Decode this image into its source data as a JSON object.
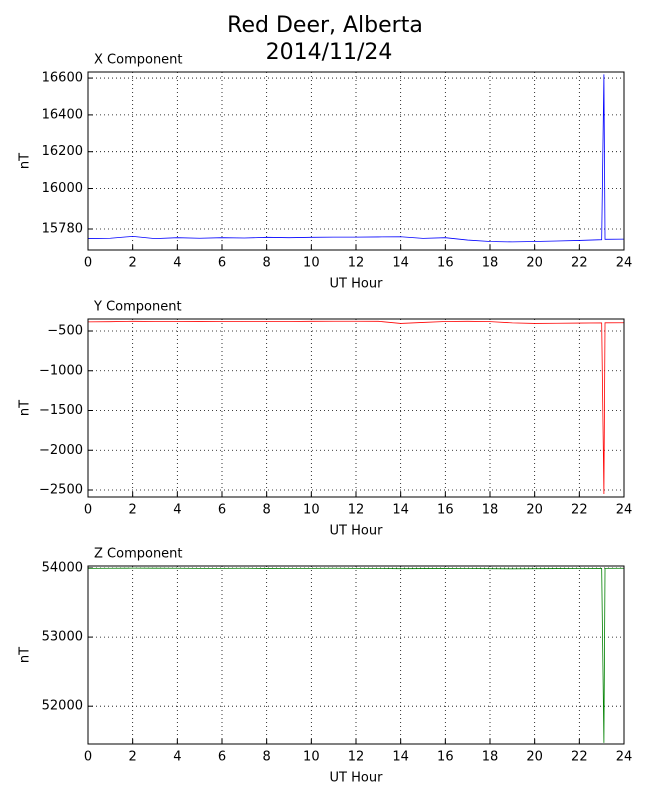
{
  "title": "Red Deer, Alberta",
  "subtitle": "2014/11/24",
  "chart_data": [
    {
      "type": "line",
      "title": "X Component",
      "x_label": "UT Hour",
      "y_label": "nT",
      "xlim": [
        0,
        24
      ],
      "xticks": [
        0,
        2,
        4,
        6,
        8,
        10,
        12,
        14,
        16,
        18,
        20,
        22,
        24
      ],
      "ylim": [
        15666,
        16633
      ],
      "yticks": [
        15780,
        16000,
        16200,
        16400,
        16600
      ],
      "grid": true,
      "x": [
        0,
        1,
        2,
        3,
        4,
        5,
        6,
        7,
        8,
        9,
        10,
        11,
        12,
        13,
        14,
        15,
        16,
        17,
        18,
        19,
        20,
        21,
        22,
        23,
        23.1,
        23.15,
        24
      ],
      "series": [
        {
          "color": "#0000ff",
          "values": [
            15728,
            15730,
            15740,
            15728,
            15733,
            15730,
            15733,
            15731,
            15735,
            15733,
            15735,
            15736,
            15736,
            15737,
            15738,
            15729,
            15733,
            15720,
            15712,
            15710,
            15712,
            15715,
            15718,
            15722,
            16620,
            15724,
            15725
          ]
        }
      ]
    },
    {
      "type": "line",
      "title": "Y Component",
      "x_label": "UT Hour",
      "y_label": "nT",
      "xlim": [
        0,
        24
      ],
      "xticks": [
        0,
        2,
        4,
        6,
        8,
        10,
        12,
        14,
        16,
        18,
        20,
        22,
        24
      ],
      "ylim": [
        -2588,
        -349
      ],
      "yticks": [
        {
          "value": -2500,
          "label": "−2500"
        },
        {
          "value": -2000,
          "label": "−2000"
        },
        {
          "value": -1500,
          "label": "−1500"
        },
        {
          "value": -1000,
          "label": "−1000"
        },
        {
          "value": -500,
          "label": "−500"
        }
      ],
      "grid": true,
      "x": [
        0,
        1,
        2,
        3,
        4,
        5,
        6,
        7,
        8,
        9,
        10,
        11,
        12,
        13,
        14,
        15,
        16,
        17,
        18,
        19,
        20,
        21,
        22,
        23,
        23.1,
        23.15,
        24
      ],
      "series": [
        {
          "color": "#ff0000",
          "values": [
            -385,
            -383,
            -378,
            -380,
            -379,
            -381,
            -380,
            -382,
            -379,
            -380,
            -378,
            -377,
            -377,
            -378,
            -405,
            -392,
            -380,
            -378,
            -382,
            -398,
            -405,
            -402,
            -400,
            -398,
            -2550,
            -397,
            -396
          ]
        }
      ]
    },
    {
      "type": "line",
      "title": "Z Component",
      "x_label": "UT Hour",
      "y_label": "nT",
      "xlim": [
        0,
        24
      ],
      "xticks": [
        0,
        2,
        4,
        6,
        8,
        10,
        12,
        14,
        16,
        18,
        20,
        22,
        24
      ],
      "ylim": [
        51453,
        54029
      ],
      "yticks": [
        52000,
        53000,
        54000
      ],
      "grid": true,
      "x": [
        0,
        1,
        2,
        3,
        4,
        5,
        6,
        7,
        8,
        9,
        10,
        11,
        12,
        13,
        14,
        15,
        16,
        17,
        18,
        19,
        20,
        21,
        22,
        23,
        23.1,
        23.15,
        24
      ],
      "series": [
        {
          "color": "#008000",
          "values": [
            53995,
            53996,
            53998,
            53997,
            53996,
            53995,
            53995,
            53996,
            53994,
            53995,
            53995,
            53996,
            53995,
            53993,
            53990,
            53992,
            53994,
            53993,
            53990,
            53988,
            53990,
            53992,
            53993,
            53994,
            51470,
            53995,
            53996
          ]
        }
      ]
    }
  ]
}
